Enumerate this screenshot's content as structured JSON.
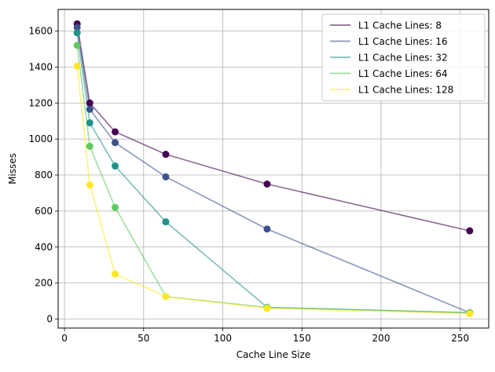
{
  "chart_data": {
    "type": "line",
    "title": "",
    "xlabel": "Cache Line Size",
    "ylabel": "Misses",
    "xlim": [
      -4,
      268
    ],
    "ylim": [
      -50,
      1720
    ],
    "xticks": [
      0,
      50,
      100,
      150,
      200,
      250
    ],
    "yticks": [
      0,
      200,
      400,
      600,
      800,
      1000,
      1200,
      1400,
      1600
    ],
    "grid": true,
    "legend": "top-right",
    "x": [
      8,
      16,
      32,
      64,
      128,
      256
    ],
    "series": [
      {
        "name": "L1 Cache Lines: 8",
        "color": "#440154",
        "values": [
          1640,
          1200,
          1040,
          915,
          750,
          490
        ]
      },
      {
        "name": "L1 Cache Lines: 16",
        "color": "#3b528b",
        "values": [
          1620,
          1165,
          980,
          790,
          500,
          35
        ]
      },
      {
        "name": "L1 Cache Lines: 32",
        "color": "#21918c",
        "values": [
          1590,
          1090,
          850,
          540,
          65,
          35
        ]
      },
      {
        "name": "L1 Cache Lines: 64",
        "color": "#5ec962",
        "values": [
          1520,
          960,
          620,
          125,
          65,
          35
        ]
      },
      {
        "name": "L1 Cache Lines: 128",
        "color": "#fde725",
        "values": [
          1405,
          745,
          250,
          125,
          60,
          30
        ]
      }
    ]
  }
}
